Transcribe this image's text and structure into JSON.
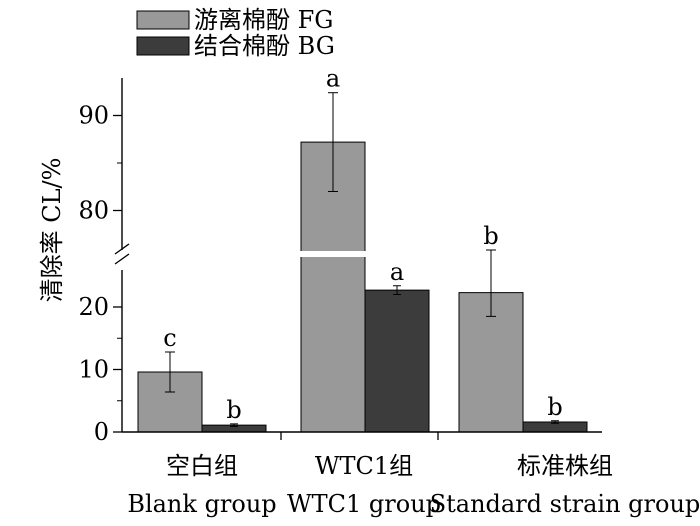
{
  "chart_data": {
    "type": "bar",
    "ylabel": "清除率 CL/%",
    "axis_break": {
      "below": 25,
      "above": 75
    },
    "yticks": [
      0,
      10,
      20,
      80,
      90
    ],
    "categories": [
      {
        "zh": "空白组",
        "en": "Blank group"
      },
      {
        "zh": "WTC1组",
        "en": "WTC1 group"
      },
      {
        "zh": "标准株组",
        "en": "Standard strain group"
      }
    ],
    "series": [
      {
        "name": "游离棉酚 FG",
        "color": "#999999",
        "values": [
          9.6,
          87.2,
          22.3
        ],
        "errors": [
          3.2,
          5.2,
          3.8
        ],
        "letters": [
          "c",
          "a",
          "b"
        ]
      },
      {
        "name": "结合棉酚 BG",
        "color": "#3c3c3c",
        "values": [
          1.1,
          22.7,
          1.6
        ],
        "errors": [
          0.2,
          0.7,
          0.2
        ],
        "letters": [
          "b",
          "a",
          "b"
        ]
      }
    ]
  }
}
